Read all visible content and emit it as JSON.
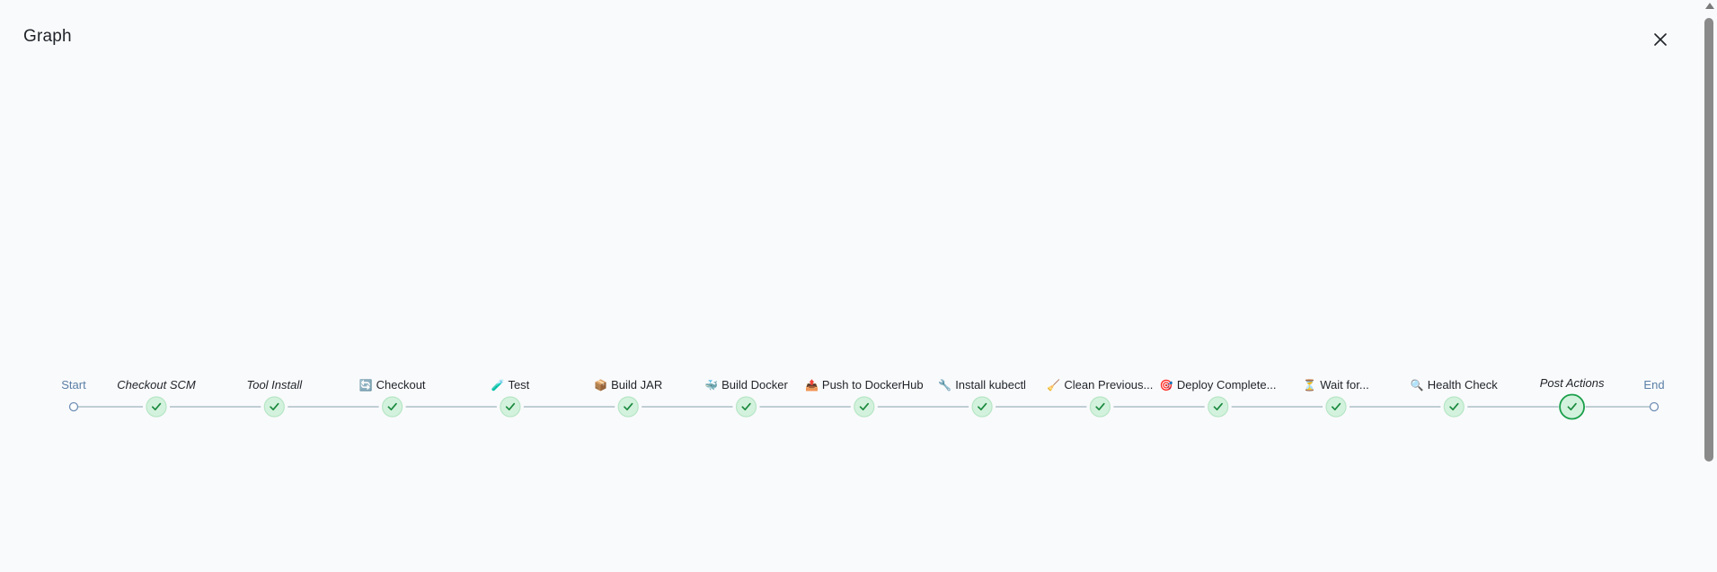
{
  "dialog": {
    "title": "Graph",
    "close_label": "Close"
  },
  "pipeline": {
    "start_label": "Start",
    "end_label": "End",
    "stages": [
      {
        "label": "Checkout SCM",
        "icon": "",
        "icon_name": "",
        "style": "italic",
        "status": "success"
      },
      {
        "label": "Tool Install",
        "icon": "",
        "icon_name": "",
        "style": "italic",
        "status": "success"
      },
      {
        "label": "Checkout",
        "icon": "🔄",
        "icon_name": "refresh-icon",
        "style": "normal",
        "status": "success"
      },
      {
        "label": "Test",
        "icon": "🧪",
        "icon_name": "test-tube-icon",
        "style": "normal",
        "status": "success"
      },
      {
        "label": "Build JAR",
        "icon": "📦",
        "icon_name": "package-icon",
        "style": "normal",
        "status": "success"
      },
      {
        "label": "Build Docker",
        "icon": "🐳",
        "icon_name": "docker-whale-icon",
        "style": "normal",
        "status": "success"
      },
      {
        "label": "Push to DockerHub",
        "icon": "📤",
        "icon_name": "outbox-icon",
        "style": "normal",
        "status": "success"
      },
      {
        "label": "Install kubectl",
        "icon": "🔧",
        "icon_name": "wrench-icon",
        "style": "normal",
        "status": "success"
      },
      {
        "label": "Clean Previous...",
        "icon": "🧹",
        "icon_name": "broom-icon",
        "style": "normal",
        "status": "success"
      },
      {
        "label": "Deploy Complete...",
        "icon": "🎯",
        "icon_name": "target-icon",
        "style": "normal",
        "status": "success"
      },
      {
        "label": "Wait for...",
        "icon": "⏳",
        "icon_name": "hourglass-icon",
        "style": "normal",
        "status": "success"
      },
      {
        "label": "Health Check",
        "icon": "🔍",
        "icon_name": "magnifier-icon",
        "style": "normal",
        "status": "success"
      },
      {
        "label": "Post Actions",
        "icon": "",
        "icon_name": "",
        "style": "italic",
        "status": "success",
        "selected": true
      }
    ]
  },
  "colors": {
    "success_fill": "#d3f2dd",
    "success_border": "#b6e6c5",
    "success_check": "#1a8a3e",
    "selected_ring": "#1a9f4a",
    "connector": "#aebfc7",
    "terminal": "#6f8fb5"
  }
}
